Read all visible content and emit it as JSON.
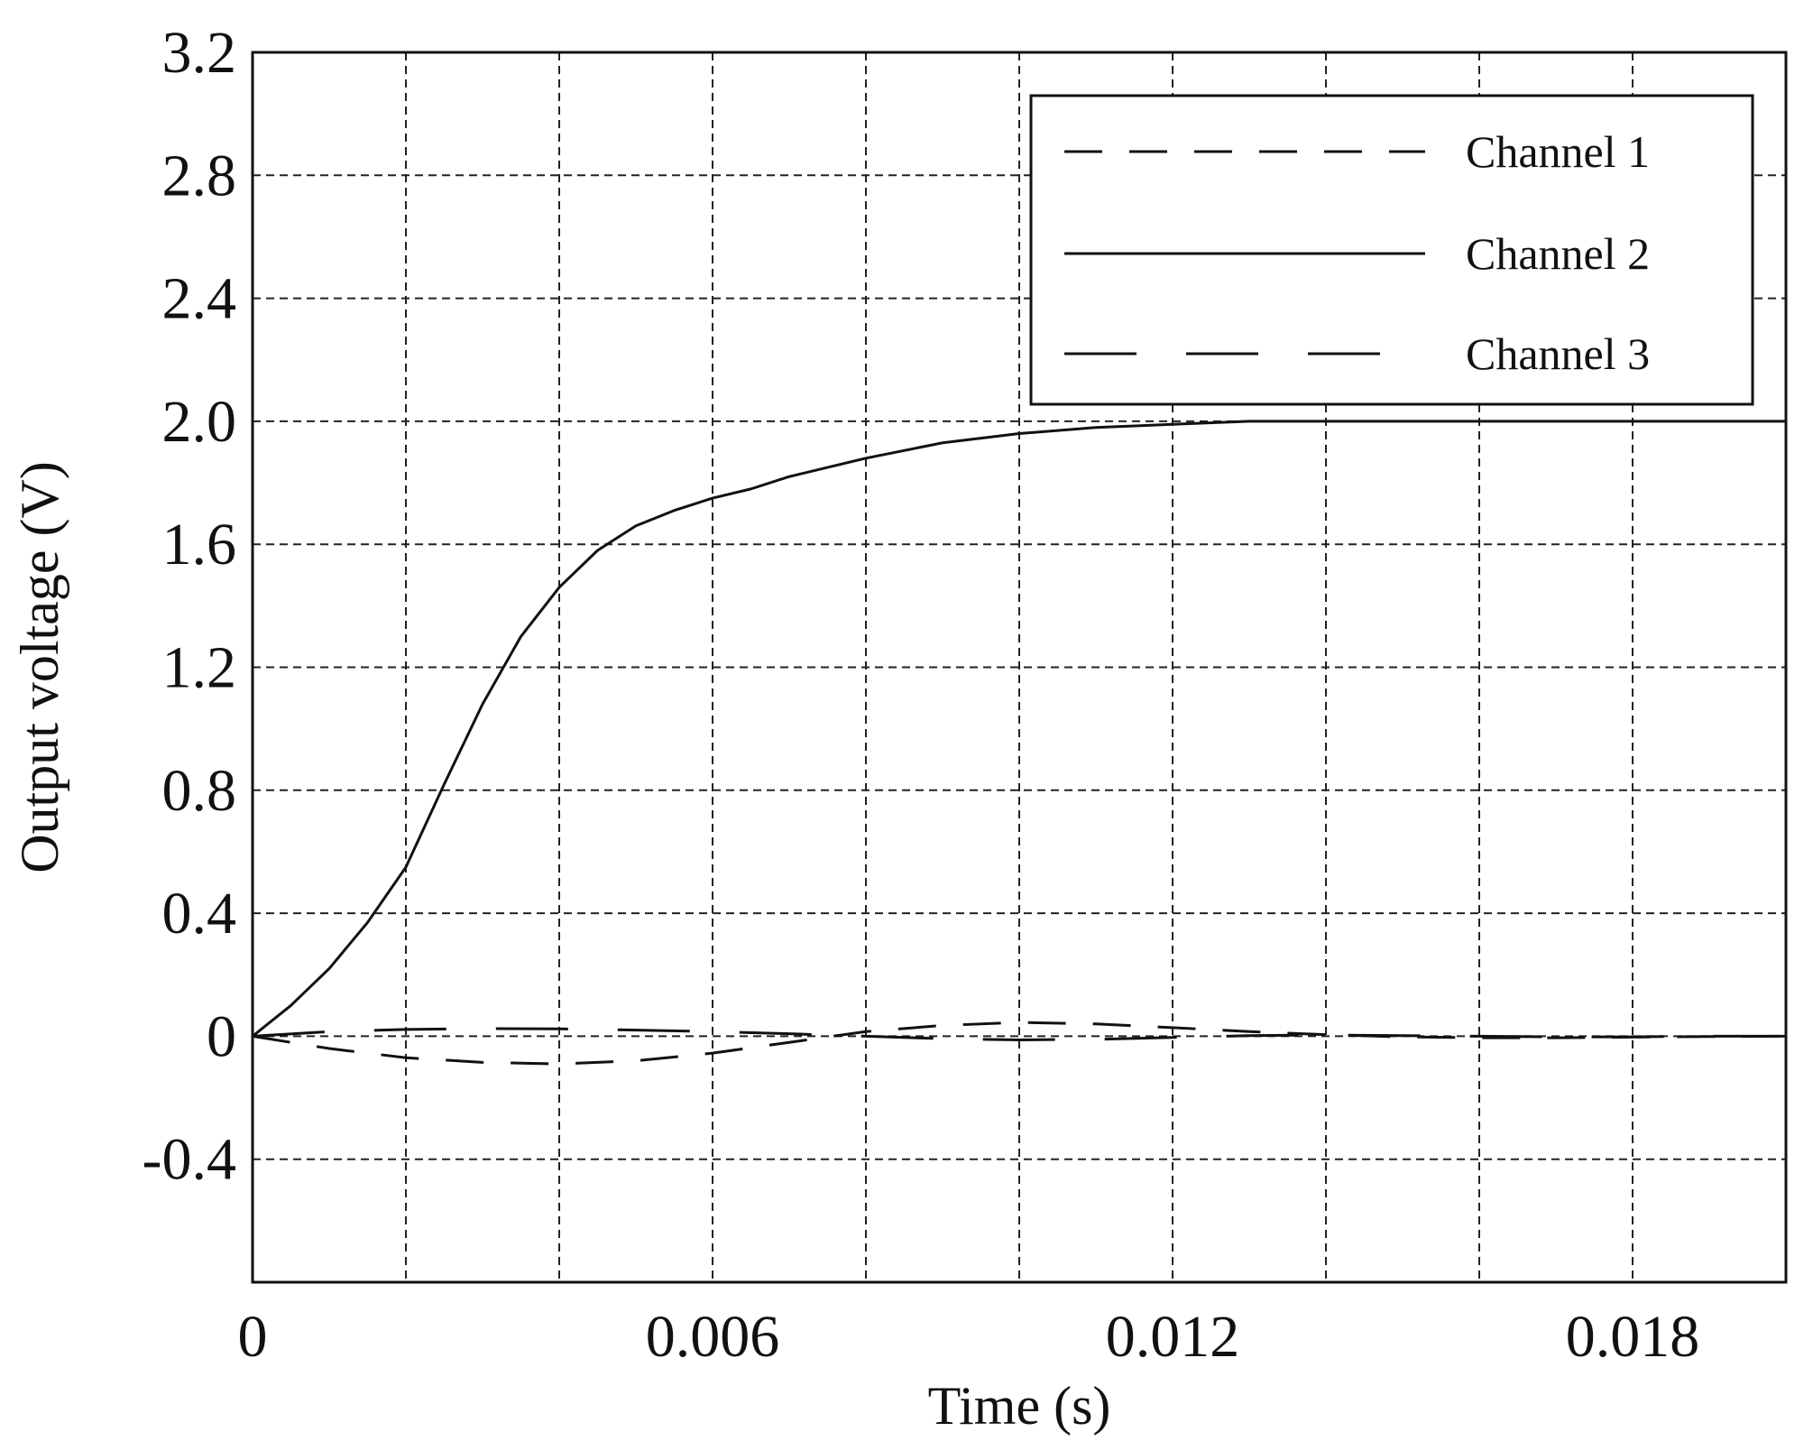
{
  "chart_data": {
    "type": "line",
    "title": "",
    "xlabel": "Time (s)",
    "ylabel": "Output voltage (V)",
    "xlim": [
      0,
      0.02
    ],
    "ylim": [
      -0.8,
      3.2
    ],
    "x_ticks": [
      0,
      0.006,
      0.012,
      0.018
    ],
    "x_tick_labels": [
      "0",
      "0.006",
      "0.012",
      "0.018"
    ],
    "x_grid": [
      0.002,
      0.004,
      0.006,
      0.008,
      0.01,
      0.012,
      0.014,
      0.016,
      0.018
    ],
    "y_ticks": [
      -0.4,
      0,
      0.4,
      0.8,
      1.2,
      1.6,
      2.0,
      2.4,
      2.8,
      3.2
    ],
    "y_tick_labels": [
      "-0.4",
      "0",
      "0.4",
      "0.8",
      "1.2",
      "1.6",
      "2.0",
      "2.4",
      "2.8",
      "3.2"
    ],
    "grid": true,
    "grid_style": "dashed",
    "legend_position": "top-right",
    "series": [
      {
        "name": "Channel 1",
        "line_style": "medium-dash",
        "x": [
          0,
          0.001,
          0.002,
          0.003,
          0.004,
          0.005,
          0.006,
          0.007,
          0.008,
          0.009,
          0.01,
          0.011,
          0.012,
          0.013,
          0.014,
          0.015,
          0.016,
          0.017,
          0.018,
          0.019,
          0.02
        ],
        "y": [
          0,
          -0.04,
          -0.07,
          -0.085,
          -0.09,
          -0.08,
          -0.055,
          -0.02,
          0.015,
          0.035,
          0.045,
          0.04,
          0.028,
          0.015,
          0.005,
          -0.002,
          -0.005,
          -0.005,
          -0.003,
          -0.001,
          0
        ]
      },
      {
        "name": "Channel 2",
        "line_style": "solid",
        "x": [
          0,
          0.0005,
          0.001,
          0.0015,
          0.002,
          0.0025,
          0.003,
          0.0035,
          0.004,
          0.0045,
          0.005,
          0.0055,
          0.006,
          0.0065,
          0.007,
          0.008,
          0.009,
          0.01,
          0.011,
          0.012,
          0.013,
          0.014,
          0.015,
          0.016,
          0.017,
          0.018,
          0.019,
          0.02
        ],
        "y": [
          0,
          0.1,
          0.22,
          0.37,
          0.55,
          0.82,
          1.08,
          1.3,
          1.46,
          1.58,
          1.66,
          1.71,
          1.75,
          1.78,
          1.82,
          1.88,
          1.93,
          1.96,
          1.98,
          1.99,
          2.0,
          2.0,
          2.0,
          2.0,
          2.0,
          2.0,
          2.0,
          2.0
        ]
      },
      {
        "name": "Channel 3",
        "line_style": "long-dash",
        "x": [
          0,
          0.001,
          0.002,
          0.003,
          0.004,
          0.005,
          0.006,
          0.007,
          0.008,
          0.009,
          0.01,
          0.011,
          0.012,
          0.013,
          0.014,
          0.015,
          0.016,
          0.017,
          0.018,
          0.019,
          0.02
        ],
        "y": [
          0,
          0.015,
          0.022,
          0.025,
          0.024,
          0.02,
          0.015,
          0.008,
          0.0,
          -0.008,
          -0.012,
          -0.01,
          -0.004,
          0.002,
          0.004,
          0.002,
          0.0,
          -0.002,
          -0.002,
          0.0,
          0.0
        ]
      }
    ]
  }
}
